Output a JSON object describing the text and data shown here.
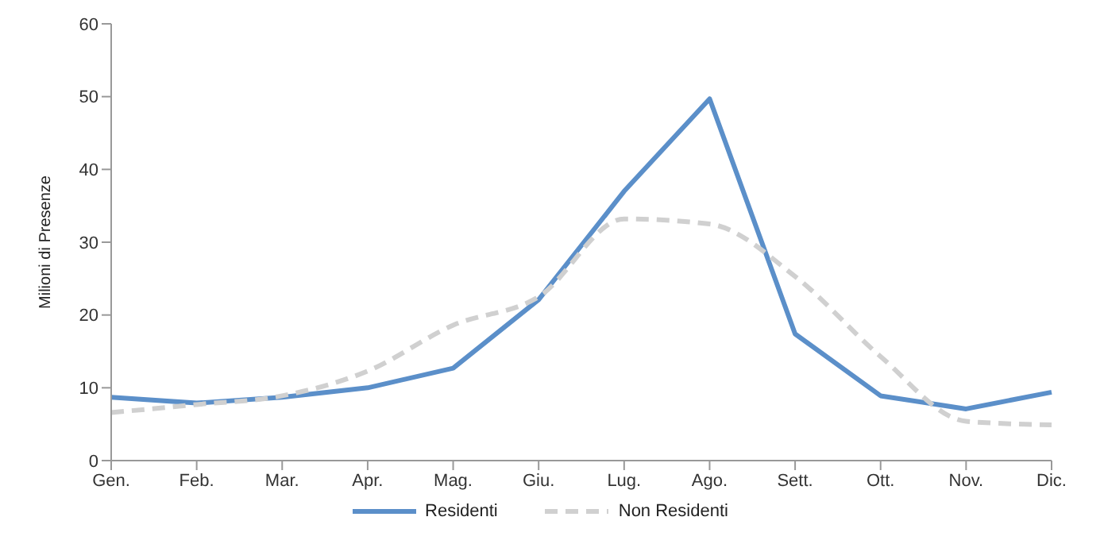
{
  "chart_data": {
    "type": "line",
    "ylabel": "Milioni di Presenze",
    "categories": [
      "Gen.",
      "Feb.",
      "Mar.",
      "Apr.",
      "Mag.",
      "Giu.",
      "Lug.",
      "Ago.",
      "Sett.",
      "Ott.",
      "Nov.",
      "Dic."
    ],
    "series": [
      {
        "name": "Residenti",
        "color": "#5b8fc9",
        "line_style": "solid",
        "values": [
          8.7,
          7.9,
          8.7,
          10,
          12.7,
          22.1,
          37,
          49.7,
          17.4,
          8.9,
          7.1,
          9.4
        ]
      },
      {
        "name": "Non Residenti",
        "color": "#d0d0d0",
        "line_style": "dashed",
        "values": [
          6.6,
          7.7,
          8.9,
          12.3,
          18.6,
          22.5,
          33.2,
          32.5,
          25.3,
          14.3,
          5.4,
          4.9
        ]
      }
    ],
    "ylim": [
      0,
      60
    ],
    "yticks": [
      0,
      10,
      20,
      30,
      40,
      50,
      60
    ],
    "grid": false,
    "legend": "bottom",
    "marker": "none"
  }
}
